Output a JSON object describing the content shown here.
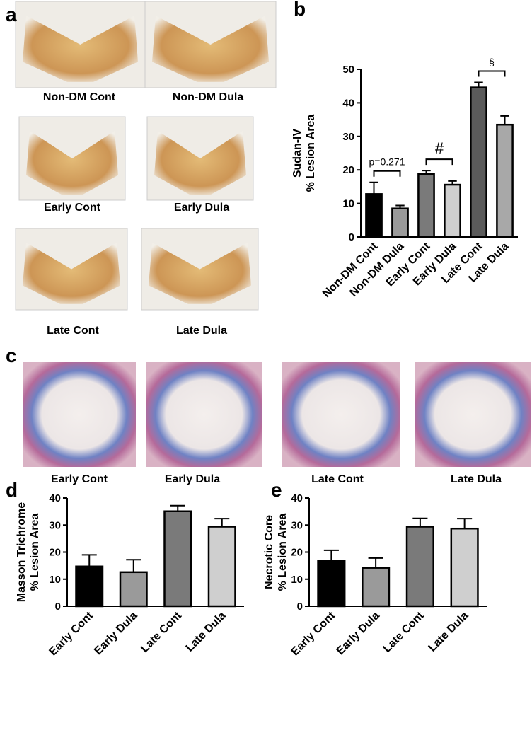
{
  "panel_labels": [
    "a",
    "b",
    "c",
    "d",
    "e"
  ],
  "images_a": [
    "Non-DM Cont",
    "Non-DM Dula",
    "Early Cont",
    "Early Dula",
    "Late Cont",
    "Late Dula"
  ],
  "images_c": [
    "Early Cont",
    "Early Dula",
    "Late Cont",
    "Late Dula"
  ],
  "chart_data": [
    {
      "type": "bar",
      "ylabel": [
        "Sudan-IV",
        "% Lesion Area"
      ],
      "categories": [
        "Non-DM Cont",
        "Non-DM Dula",
        "Early Cont",
        "Early Dula",
        "Late Cont",
        "Late Dula"
      ],
      "values": [
        12.8,
        8.5,
        18.8,
        15.6,
        44.6,
        33.5
      ],
      "errors": [
        3.5,
        0.9,
        1.0,
        1.1,
        1.5,
        2.6
      ],
      "colors": [
        "#000000",
        "#9a9a9a",
        "#7a7a7a",
        "#cfcfcf",
        "#5a5a5a",
        "#a8a8a8"
      ],
      "ylim": [
        0,
        50
      ],
      "yticks": [
        0,
        10,
        20,
        30,
        40,
        50
      ],
      "annotations": [
        "p=0.271",
        "#",
        "§"
      ]
    },
    {
      "type": "bar",
      "ylabel": [
        "Masson Trichrome",
        "% Lesion Area"
      ],
      "categories": [
        "Early Cont",
        "Early Dula",
        "Late Cont",
        "Late Dula"
      ],
      "values": [
        14.7,
        12.6,
        35.1,
        29.4
      ],
      "errors": [
        4.3,
        4.6,
        2.1,
        3.0
      ],
      "colors": [
        "#000000",
        "#9a9a9a",
        "#7a7a7a",
        "#cfcfcf"
      ],
      "ylim": [
        0,
        40
      ],
      "yticks": [
        0,
        10,
        20,
        30,
        40
      ]
    },
    {
      "type": "bar",
      "ylabel": [
        "Necrotic Core",
        "% Lesion Area"
      ],
      "categories": [
        "Early Cont",
        "Early Dula",
        "Late Cont",
        "Late Dula"
      ],
      "values": [
        16.7,
        14.2,
        29.4,
        28.7
      ],
      "errors": [
        4.0,
        3.6,
        3.1,
        3.7
      ],
      "colors": [
        "#000000",
        "#9a9a9a",
        "#7a7a7a",
        "#cfcfcf"
      ],
      "ylim": [
        0,
        40
      ],
      "yticks": [
        0,
        10,
        20,
        30,
        40
      ]
    }
  ]
}
